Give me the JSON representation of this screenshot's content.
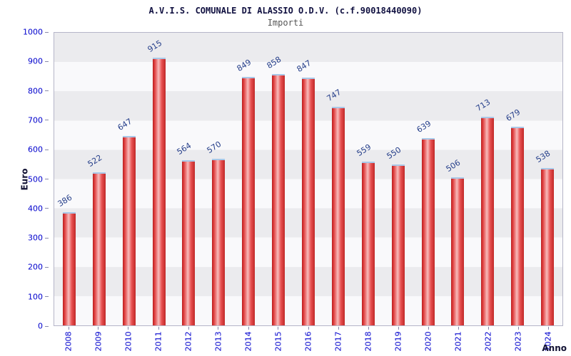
{
  "chart_data": {
    "type": "bar",
    "title": "A.V.I.S. COMUNALE DI ALASSIO O.D.V. (c.f.90018440090)",
    "subtitle": "Importi",
    "ylabel": "Euro",
    "xlabel": "Anno",
    "categories": [
      "2008",
      "2009",
      "2010",
      "2011",
      "2012",
      "2013",
      "2014",
      "2015",
      "2016",
      "2017",
      "2018",
      "2019",
      "2020",
      "2021",
      "2022",
      "2023",
      "2024"
    ],
    "values": [
      386,
      522,
      647,
      915,
      564,
      570,
      849,
      858,
      847,
      747,
      559,
      550,
      639,
      506,
      713,
      679,
      538
    ],
    "ylim": [
      0,
      1000
    ],
    "ytick_step": 100,
    "legend": "none",
    "grid": "striped-bands",
    "bar_color": "#e04040",
    "bar_highlight_color": "#f7bcbc",
    "bar_cap_color": "#a8c8e8",
    "value_label_color": "#27408b",
    "axis_tick_label_color": "#0000cd",
    "band_color_a": "#ebebee",
    "band_color_b": "#f9f9fb"
  }
}
